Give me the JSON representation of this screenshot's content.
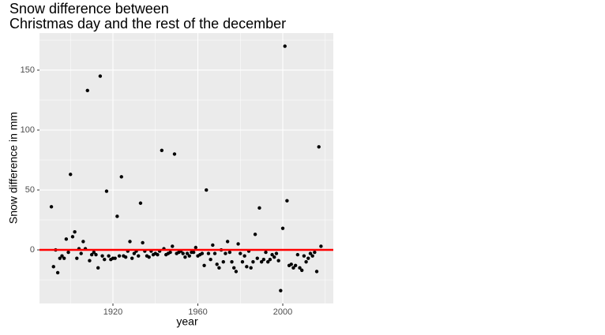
{
  "chart_data": {
    "type": "scatter",
    "title": [
      "Snow difference between",
      "Christmas day and the rest of the december"
    ],
    "x_label": "year",
    "y_label": "Snow difference in mm",
    "x": [
      1891,
      1892,
      1893,
      1894,
      1895,
      1896,
      1897,
      1898,
      1899,
      1900,
      1901,
      1902,
      1903,
      1904,
      1905,
      1906,
      1907,
      1908,
      1909,
      1910,
      1911,
      1912,
      1913,
      1914,
      1915,
      1916,
      1917,
      1918,
      1919,
      1920,
      1921,
      1922,
      1923,
      1924,
      1925,
      1926,
      1927,
      1928,
      1929,
      1930,
      1931,
      1932,
      1933,
      1934,
      1935,
      1936,
      1937,
      1938,
      1939,
      1940,
      1941,
      1942,
      1943,
      1944,
      1945,
      1946,
      1947,
      1948,
      1949,
      1950,
      1951,
      1952,
      1953,
      1954,
      1955,
      1956,
      1957,
      1958,
      1959,
      1960,
      1961,
      1962,
      1963,
      1964,
      1965,
      1966,
      1967,
      1968,
      1969,
      1970,
      1971,
      1972,
      1973,
      1974,
      1975,
      1976,
      1977,
      1978,
      1979,
      1980,
      1981,
      1982,
      1983,
      1984,
      1985,
      1986,
      1987,
      1988,
      1989,
      1990,
      1991,
      1992,
      1993,
      1994,
      1995,
      1996,
      1997,
      1998,
      1999,
      2000,
      2001,
      2002,
      2003,
      2004,
      2005,
      2006,
      2007,
      2008,
      2009,
      2010,
      2011,
      2012,
      2013,
      2014,
      2015,
      2016,
      2017,
      2018
    ],
    "series": [
      {
        "color": "#000000",
        "values": [
          36,
          -14,
          0,
          -19,
          -7,
          -5,
          -7,
          9,
          -2,
          63,
          11,
          15,
          -7,
          1,
          -3,
          7,
          1,
          133,
          -9,
          -4,
          -2,
          -4,
          -15,
          145,
          -5,
          -8,
          49,
          -5,
          -8,
          -7,
          -7,
          28,
          -5,
          61,
          -5,
          -6,
          -1,
          7,
          -7,
          -3,
          -1,
          -5,
          39,
          6,
          -1,
          -5,
          -6,
          -1,
          -4,
          -3,
          -4,
          -1,
          83,
          1,
          -4,
          -3,
          -2,
          3,
          80,
          -3,
          -2,
          -1,
          -3,
          -6,
          -3,
          -5,
          -2,
          -2,
          2,
          -5,
          -4,
          -3,
          -13,
          50,
          -3,
          -8,
          4,
          -3,
          -12,
          -15,
          0,
          -10,
          -3,
          7,
          -2,
          -10,
          -15,
          -18,
          5,
          -3,
          -10,
          -5,
          -14,
          -1,
          -15,
          -10,
          13,
          -7,
          35,
          -10,
          -8,
          -2,
          -10,
          -8,
          -4,
          -6,
          -3,
          -9,
          -34,
          18,
          170,
          41,
          -13,
          -12,
          -15,
          -13,
          -4,
          -15,
          -17,
          -5,
          -10,
          -7,
          -3,
          -5,
          -2,
          -18,
          86,
          3
        ]
      }
    ],
    "hline": {
      "value": 0,
      "color": "#ff0000"
    },
    "xlim": [
      1885.4,
      2023.8
    ],
    "ylim": [
      -44.7,
      180.9
    ],
    "xticks": [
      1920,
      1960,
      2000
    ],
    "yticks": [
      0,
      50,
      100,
      150
    ],
    "grid": true
  }
}
